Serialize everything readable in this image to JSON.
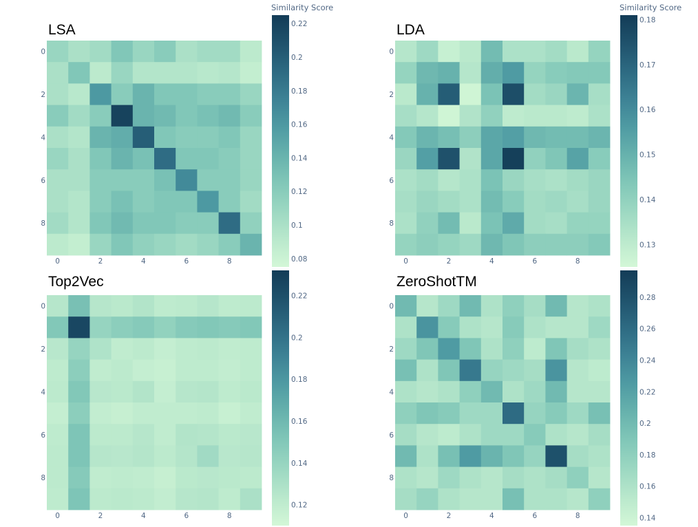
{
  "colorbar_title": "Similarity Score",
  "colorscale": [
    "#d3f7d7",
    "#b9e8cc",
    "#9cd8c2",
    "#81c7b8",
    "#67b2ad",
    "#4f9ba3",
    "#3d8295",
    "#2d6a82",
    "#1f526c",
    "#133c57"
  ],
  "chart_data": [
    {
      "type": "heatmap",
      "title": "LSA",
      "x_ticks": [
        "0",
        "2",
        "4",
        "6",
        "8"
      ],
      "y_ticks": [
        "0",
        "2",
        "4",
        "6",
        "8"
      ],
      "zmin": 0.075,
      "zmax": 0.225,
      "cbar_ticks": [
        "0.08",
        "0.1",
        "0.12",
        "0.14",
        "0.16",
        "0.18",
        "0.2",
        "0.22"
      ],
      "z": [
        [
          0.11,
          0.1,
          0.105,
          0.125,
          0.11,
          0.12,
          0.1,
          0.105,
          0.105,
          0.09
        ],
        [
          0.1,
          0.125,
          0.09,
          0.11,
          0.095,
          0.095,
          0.095,
          0.092,
          0.094,
          0.085
        ],
        [
          0.1,
          0.092,
          0.16,
          0.12,
          0.14,
          0.125,
          0.125,
          0.12,
          0.12,
          0.11
        ],
        [
          0.12,
          0.105,
          0.12,
          0.22,
          0.14,
          0.135,
          0.125,
          0.13,
          0.135,
          0.12
        ],
        [
          0.1,
          0.095,
          0.14,
          0.145,
          0.2,
          0.125,
          0.12,
          0.12,
          0.125,
          0.11
        ],
        [
          0.11,
          0.1,
          0.125,
          0.14,
          0.13,
          0.19,
          0.125,
          0.125,
          0.12,
          0.11
        ],
        [
          0.1,
          0.1,
          0.12,
          0.12,
          0.12,
          0.13,
          0.17,
          0.12,
          0.12,
          0.11
        ],
        [
          0.1,
          0.095,
          0.12,
          0.13,
          0.12,
          0.125,
          0.125,
          0.16,
          0.12,
          0.105
        ],
        [
          0.105,
          0.095,
          0.125,
          0.135,
          0.125,
          0.125,
          0.12,
          0.12,
          0.19,
          0.115
        ],
        [
          0.09,
          0.085,
          0.11,
          0.125,
          0.115,
          0.11,
          0.105,
          0.11,
          0.12,
          0.14
        ]
      ]
    },
    {
      "type": "heatmap",
      "title": "LDA",
      "x_ticks": [
        "0",
        "2",
        "4",
        "6",
        "8"
      ],
      "y_ticks": [
        "0",
        "2",
        "4",
        "6",
        "8"
      ],
      "zmin": 0.125,
      "zmax": 0.181,
      "cbar_ticks": [
        "0.13",
        "0.14",
        "0.15",
        "0.16",
        "0.17",
        "0.18"
      ],
      "z": [
        [
          0.132,
          0.137,
          0.128,
          0.131,
          0.147,
          0.134,
          0.134,
          0.136,
          0.131,
          0.139
        ],
        [
          0.139,
          0.148,
          0.15,
          0.132,
          0.151,
          0.156,
          0.139,
          0.142,
          0.143,
          0.143
        ],
        [
          0.131,
          0.15,
          0.172,
          0.126,
          0.145,
          0.176,
          0.136,
          0.138,
          0.149,
          0.135
        ],
        [
          0.135,
          0.132,
          0.126,
          0.133,
          0.14,
          0.13,
          0.131,
          0.131,
          0.13,
          0.134
        ],
        [
          0.143,
          0.149,
          0.146,
          0.141,
          0.153,
          0.155,
          0.148,
          0.147,
          0.147,
          0.149
        ],
        [
          0.138,
          0.155,
          0.175,
          0.133,
          0.153,
          0.18,
          0.14,
          0.144,
          0.154,
          0.142
        ],
        [
          0.134,
          0.136,
          0.132,
          0.134,
          0.145,
          0.138,
          0.135,
          0.134,
          0.136,
          0.138
        ],
        [
          0.135,
          0.138,
          0.136,
          0.134,
          0.147,
          0.142,
          0.136,
          0.137,
          0.135,
          0.138
        ],
        [
          0.134,
          0.14,
          0.147,
          0.131,
          0.145,
          0.152,
          0.136,
          0.135,
          0.139,
          0.139
        ],
        [
          0.139,
          0.141,
          0.139,
          0.137,
          0.148,
          0.144,
          0.141,
          0.141,
          0.141,
          0.143
        ]
      ]
    },
    {
      "type": "heatmap",
      "title": "Top2Vec",
      "x_ticks": [
        "0",
        "2",
        "4",
        "6",
        "8"
      ],
      "y_ticks": [
        "0",
        "2",
        "4",
        "6",
        "8"
      ],
      "zmin": 0.11,
      "zmax": 0.232,
      "cbar_ticks": [
        "0.12",
        "0.14",
        "0.16",
        "0.18",
        "0.2",
        "0.22"
      ],
      "z": [
        [
          0.125,
          0.155,
          0.125,
          0.123,
          0.127,
          0.121,
          0.122,
          0.125,
          0.121,
          0.122
        ],
        [
          0.15,
          0.225,
          0.14,
          0.145,
          0.148,
          0.142,
          0.148,
          0.15,
          0.148,
          0.15
        ],
        [
          0.124,
          0.14,
          0.128,
          0.12,
          0.122,
          0.118,
          0.121,
          0.122,
          0.12,
          0.121
        ],
        [
          0.121,
          0.145,
          0.12,
          0.122,
          0.118,
          0.116,
          0.121,
          0.121,
          0.119,
          0.121
        ],
        [
          0.122,
          0.15,
          0.124,
          0.123,
          0.127,
          0.118,
          0.125,
          0.126,
          0.121,
          0.123
        ],
        [
          0.118,
          0.145,
          0.119,
          0.117,
          0.12,
          0.12,
          0.12,
          0.121,
          0.116,
          0.12
        ],
        [
          0.121,
          0.152,
          0.122,
          0.122,
          0.125,
          0.12,
          0.127,
          0.126,
          0.123,
          0.124
        ],
        [
          0.122,
          0.152,
          0.125,
          0.124,
          0.126,
          0.122,
          0.126,
          0.135,
          0.124,
          0.125
        ],
        [
          0.122,
          0.148,
          0.12,
          0.121,
          0.12,
          0.117,
          0.123,
          0.124,
          0.123,
          0.122
        ],
        [
          0.121,
          0.152,
          0.122,
          0.123,
          0.122,
          0.119,
          0.125,
          0.126,
          0.121,
          0.13
        ]
      ]
    },
    {
      "type": "heatmap",
      "title": "ZeroShotTM",
      "x_ticks": [
        "0",
        "2",
        "4",
        "6",
        "8"
      ],
      "y_ticks": [
        "0",
        "2",
        "4",
        "6",
        "8"
      ],
      "zmin": 0.135,
      "zmax": 0.297,
      "cbar_ticks": [
        "0.14",
        "0.16",
        "0.18",
        "0.2",
        "0.22",
        "0.24",
        "0.26",
        "0.28"
      ],
      "z": [
        [
          0.2,
          0.155,
          0.17,
          0.2,
          0.16,
          0.18,
          0.165,
          0.2,
          0.155,
          0.16
        ],
        [
          0.16,
          0.23,
          0.185,
          0.16,
          0.155,
          0.185,
          0.16,
          0.155,
          0.155,
          0.17
        ],
        [
          0.17,
          0.19,
          0.225,
          0.19,
          0.16,
          0.18,
          0.15,
          0.19,
          0.165,
          0.16
        ],
        [
          0.195,
          0.16,
          0.19,
          0.25,
          0.175,
          0.17,
          0.165,
          0.23,
          0.155,
          0.15
        ],
        [
          0.16,
          0.155,
          0.16,
          0.18,
          0.2,
          0.16,
          0.17,
          0.2,
          0.155,
          0.155
        ],
        [
          0.18,
          0.19,
          0.185,
          0.17,
          0.17,
          0.26,
          0.175,
          0.185,
          0.17,
          0.195
        ],
        [
          0.165,
          0.155,
          0.15,
          0.16,
          0.17,
          0.17,
          0.185,
          0.16,
          0.155,
          0.165
        ],
        [
          0.2,
          0.16,
          0.195,
          0.225,
          0.205,
          0.19,
          0.175,
          0.28,
          0.165,
          0.16
        ],
        [
          0.16,
          0.155,
          0.17,
          0.16,
          0.155,
          0.165,
          0.16,
          0.165,
          0.18,
          0.155
        ],
        [
          0.165,
          0.175,
          0.16,
          0.155,
          0.155,
          0.195,
          0.16,
          0.16,
          0.155,
          0.18
        ]
      ]
    }
  ]
}
